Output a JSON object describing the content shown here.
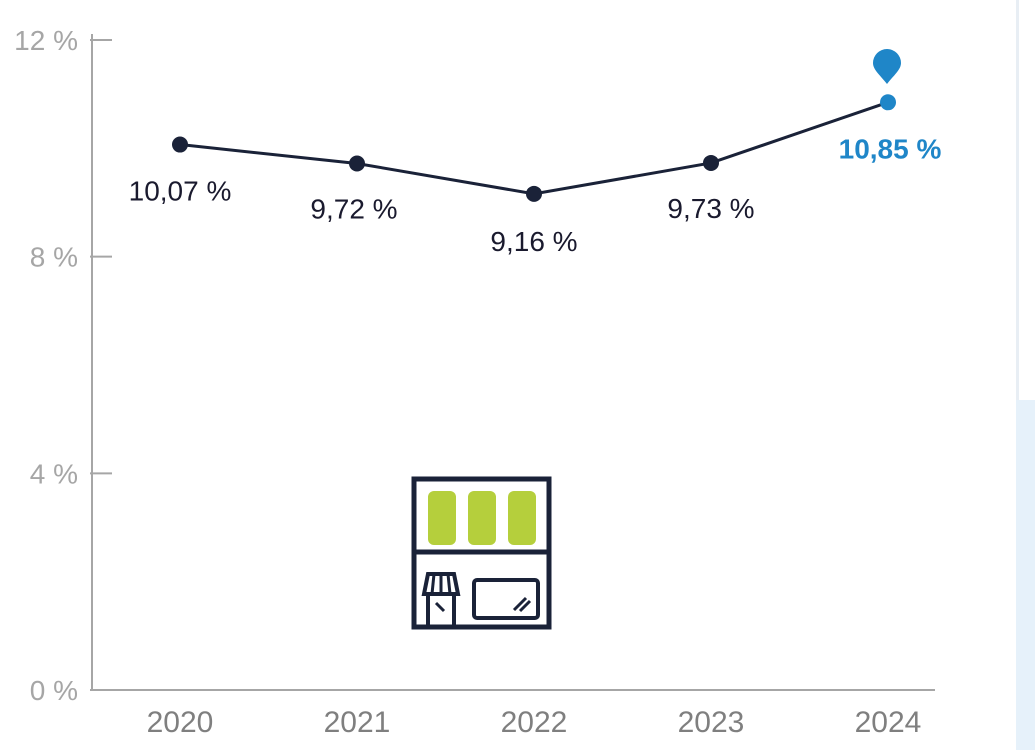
{
  "chart_data": {
    "type": "line",
    "categories": [
      "2020",
      "2021",
      "2022",
      "2023",
      "2024"
    ],
    "series": [
      {
        "values": [
          10.07,
          9.72,
          9.16,
          9.73,
          10.85
        ]
      }
    ],
    "data_labels": [
      "10,07 %",
      "9,72 %",
      "9,16 %",
      "9,73 %",
      "10,85 %"
    ],
    "y_ticks": [
      0,
      4,
      8,
      12
    ],
    "y_tick_labels": [
      "0 %",
      "4 %",
      "8 %",
      "12 %"
    ],
    "ylim": [
      0,
      12
    ],
    "title": "",
    "xlabel": "",
    "ylabel": "",
    "grid": false,
    "highlight_index": 4,
    "colors": {
      "line": "#1a2238",
      "highlight": "#1f86c8",
      "axis": "#a6a6a6",
      "icon_outline": "#1a2238",
      "icon_fill": "#b5cf3c"
    },
    "icons": [
      "shop-icon",
      "location-pin-icon"
    ]
  }
}
